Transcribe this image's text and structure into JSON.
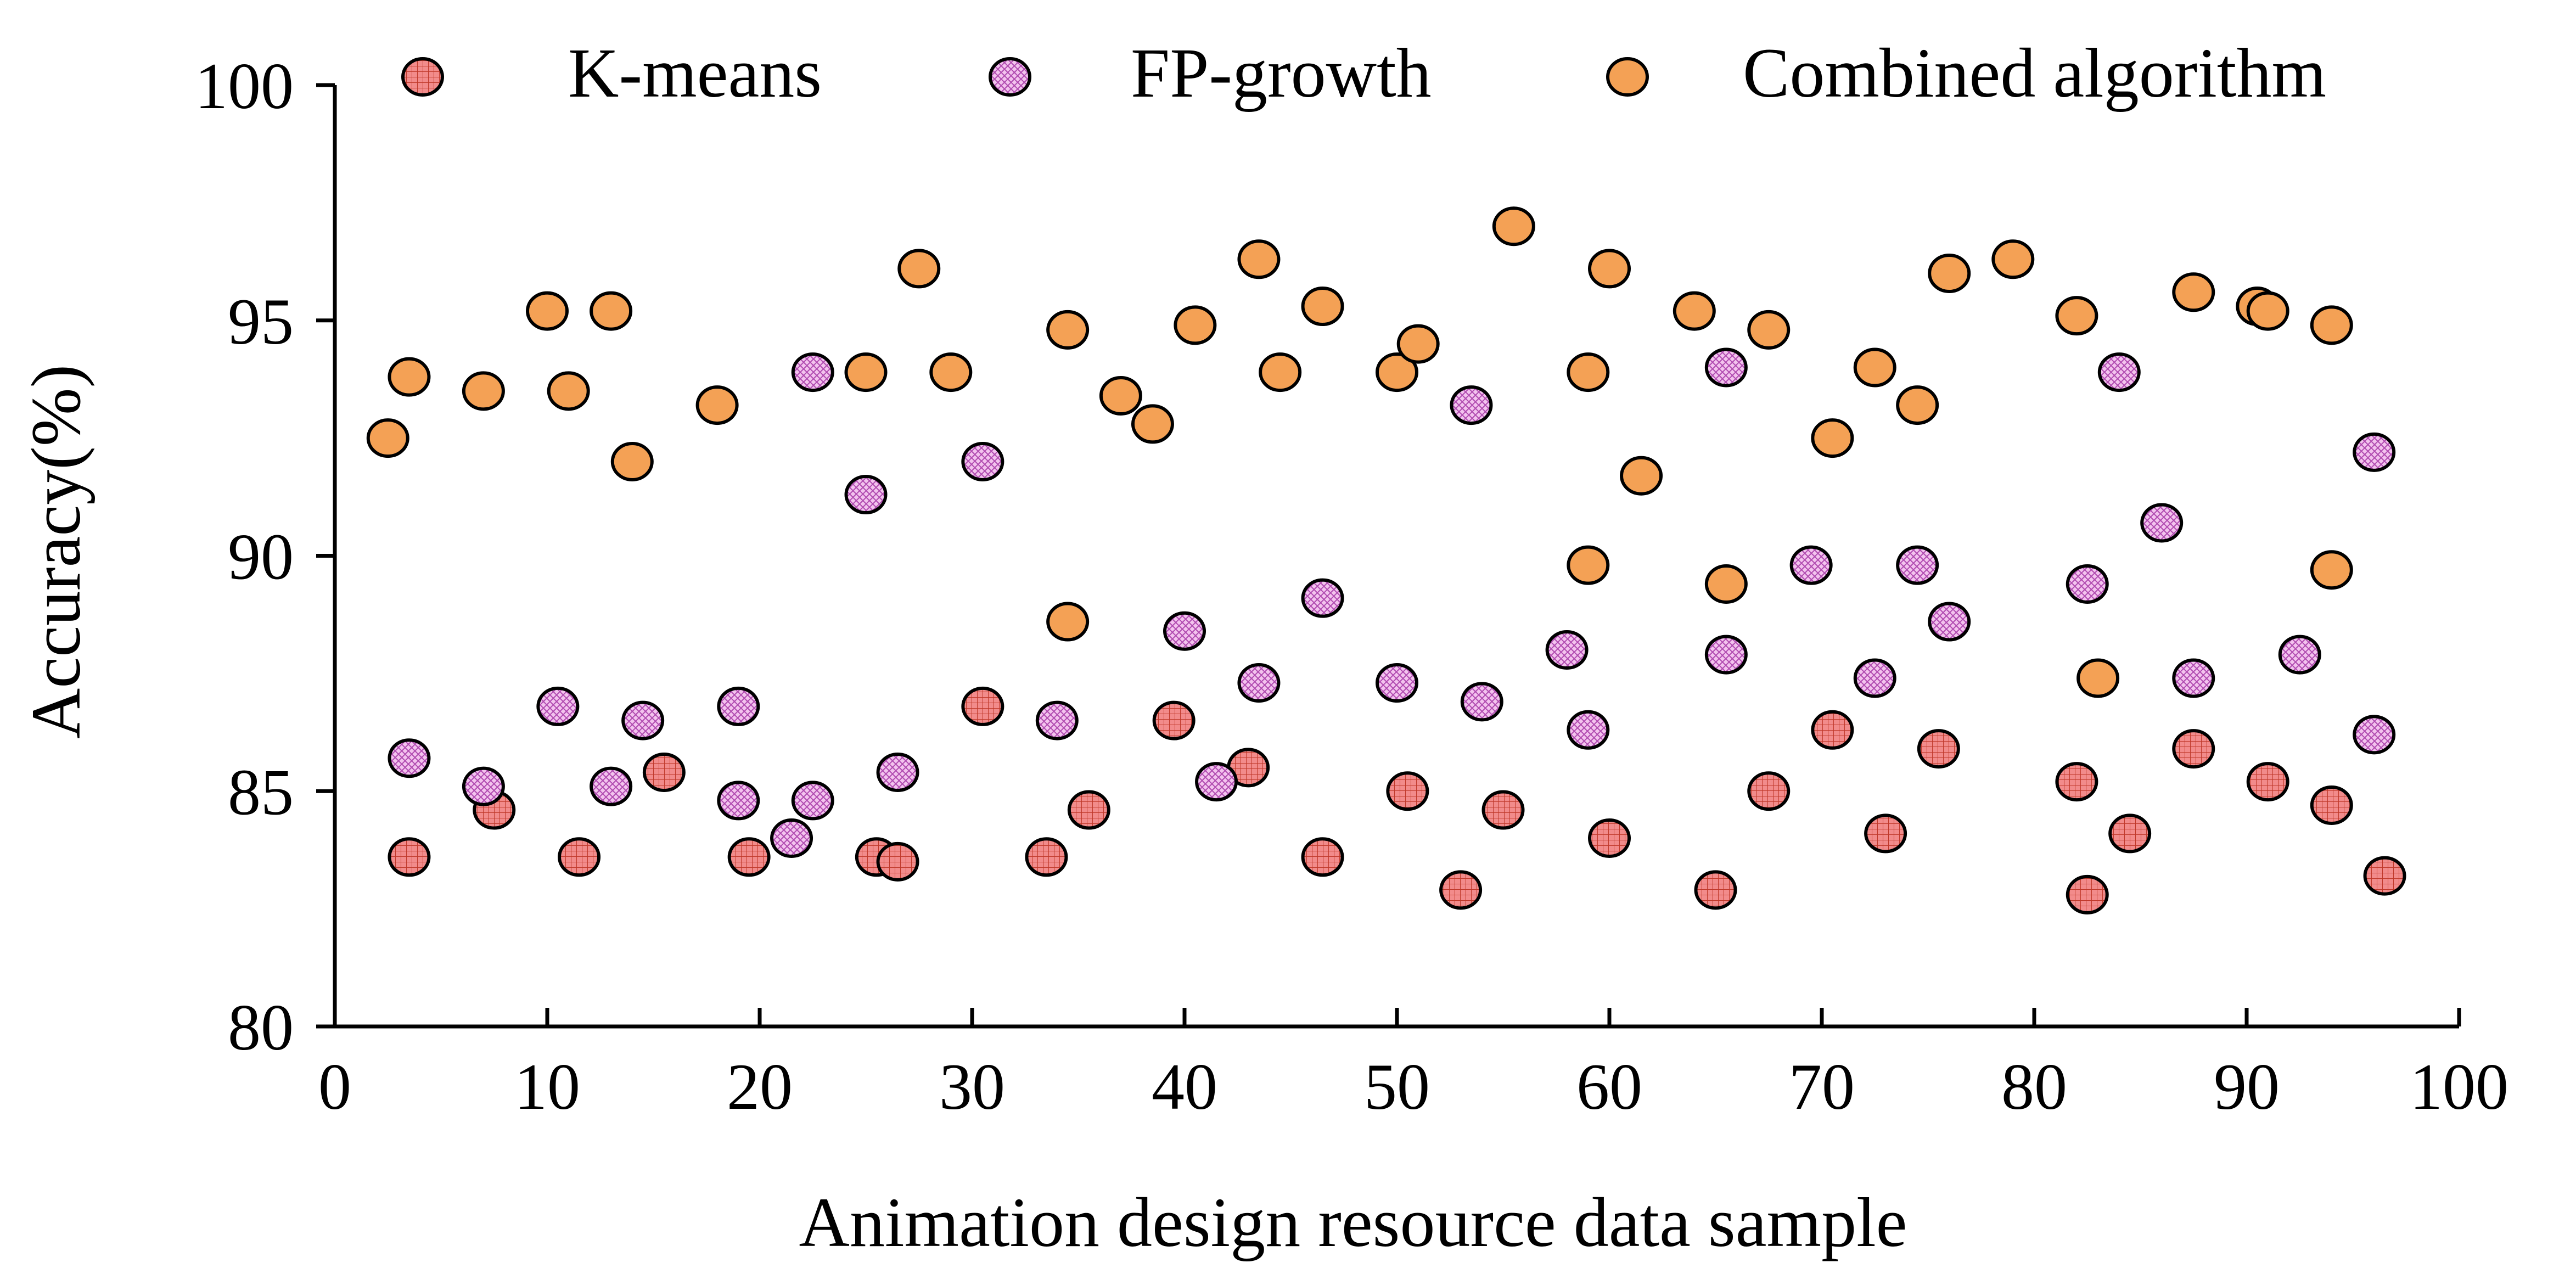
{
  "chart_data": {
    "type": "scatter",
    "title": "",
    "xlabel": "Animation design resource data sample",
    "ylabel": "Accuracy(%)",
    "xlim": [
      0,
      100
    ],
    "ylim": [
      80,
      100
    ],
    "xticks": [
      0,
      10,
      20,
      30,
      40,
      50,
      60,
      70,
      80,
      90,
      100
    ],
    "yticks": [
      80,
      85,
      90,
      95,
      100
    ],
    "grid": false,
    "legend_position": "top",
    "series": [
      {
        "name": "K-means",
        "color": "#f28b8b",
        "pattern": "grid",
        "points": [
          [
            3.5,
            83.6
          ],
          [
            7.5,
            84.6
          ],
          [
            11.5,
            83.6
          ],
          [
            15.5,
            85.4
          ],
          [
            19.5,
            83.6
          ],
          [
            25.5,
            83.6
          ],
          [
            26.5,
            83.5
          ],
          [
            30.5,
            86.8
          ],
          [
            33.5,
            83.6
          ],
          [
            35.5,
            84.6
          ],
          [
            39.5,
            86.5
          ],
          [
            43,
            85.5
          ],
          [
            46.5,
            83.6
          ],
          [
            50.5,
            85
          ],
          [
            53,
            82.9
          ],
          [
            55,
            84.6
          ],
          [
            60,
            84
          ],
          [
            65,
            82.9
          ],
          [
            67.5,
            85
          ],
          [
            70.5,
            86.3
          ],
          [
            73,
            84.1
          ],
          [
            75.5,
            85.9
          ],
          [
            82,
            85.2
          ],
          [
            82.5,
            82.8
          ],
          [
            84.5,
            84.1
          ],
          [
            87.5,
            85.9
          ],
          [
            91,
            85.2
          ],
          [
            94,
            84.7
          ],
          [
            96.5,
            83.2
          ]
        ]
      },
      {
        "name": "FP-growth",
        "color": "#f3c3ee",
        "pattern": "crosshatch",
        "points": [
          [
            3.5,
            85.7
          ],
          [
            7,
            85.1
          ],
          [
            10.5,
            86.8
          ],
          [
            13,
            85.1
          ],
          [
            14.5,
            86.5
          ],
          [
            19,
            86.8
          ],
          [
            19,
            84.8
          ],
          [
            21.5,
            84
          ],
          [
            22.5,
            84.8
          ],
          [
            22.5,
            93.9
          ],
          [
            25,
            91.3
          ],
          [
            26.5,
            85.4
          ],
          [
            30.5,
            92
          ],
          [
            34,
            86.5
          ],
          [
            40,
            88.4
          ],
          [
            41.5,
            85.2
          ],
          [
            43.5,
            87.3
          ],
          [
            46.5,
            89.1
          ],
          [
            50,
            87.3
          ],
          [
            53.5,
            93.2
          ],
          [
            54,
            86.9
          ],
          [
            58,
            88
          ],
          [
            59,
            86.3
          ],
          [
            65.5,
            94
          ],
          [
            65.5,
            87.9
          ],
          [
            69.5,
            89.8
          ],
          [
            72.5,
            87.4
          ],
          [
            74.5,
            89.8
          ],
          [
            76,
            88.6
          ],
          [
            82.5,
            89.4
          ],
          [
            84,
            93.9
          ],
          [
            86,
            90.7
          ],
          [
            87.5,
            87.4
          ],
          [
            92.5,
            87.9
          ],
          [
            96,
            92.2
          ],
          [
            96,
            86.2
          ]
        ]
      },
      {
        "name": "Combined algorithm",
        "color": "#f4a155",
        "pattern": "solid",
        "points": [
          [
            2.5,
            92.5
          ],
          [
            3.5,
            93.8
          ],
          [
            7,
            93.5
          ],
          [
            10,
            95.2
          ],
          [
            11,
            93.5
          ],
          [
            13,
            95.2
          ],
          [
            14,
            92
          ],
          [
            18,
            93.2
          ],
          [
            25,
            93.9
          ],
          [
            27.5,
            96.1
          ],
          [
            29,
            93.9
          ],
          [
            34.5,
            94.8
          ],
          [
            34.5,
            88.6
          ],
          [
            37,
            93.4
          ],
          [
            38.5,
            92.8
          ],
          [
            40.5,
            94.9
          ],
          [
            43.5,
            96.3
          ],
          [
            44.5,
            93.9
          ],
          [
            46.5,
            95.3
          ],
          [
            50,
            93.9
          ],
          [
            51,
            94.5
          ],
          [
            55.5,
            97
          ],
          [
            59,
            93.9
          ],
          [
            60,
            96.1
          ],
          [
            59,
            89.8
          ],
          [
            61.5,
            91.7
          ],
          [
            64,
            95.2
          ],
          [
            65.5,
            89.4
          ],
          [
            67.5,
            94.8
          ],
          [
            70.5,
            92.5
          ],
          [
            72.5,
            94
          ],
          [
            74.5,
            93.2
          ],
          [
            76,
            96
          ],
          [
            79,
            96.3
          ],
          [
            82,
            95.1
          ],
          [
            83,
            87.4
          ],
          [
            87.5,
            95.6
          ],
          [
            90.5,
            95.3
          ],
          [
            91,
            95.2
          ],
          [
            94,
            94.9
          ],
          [
            94,
            89.7
          ]
        ]
      }
    ]
  }
}
